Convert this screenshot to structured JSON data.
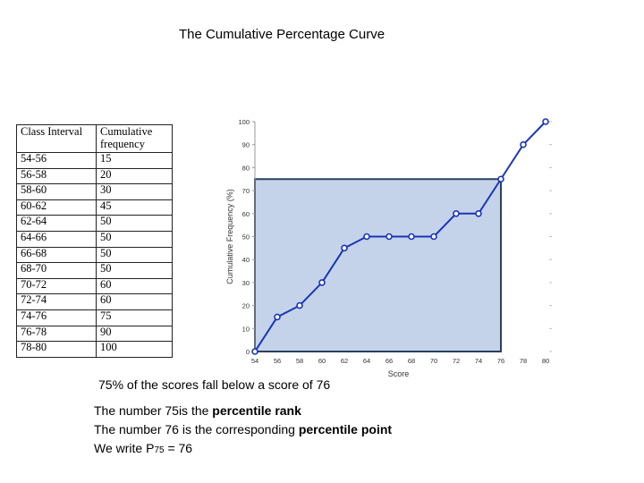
{
  "title": "The Cumulative Percentage Curve",
  "table": {
    "headers": [
      "Class Interval",
      "Cumulative frequency"
    ],
    "rows": [
      [
        "54-56",
        "15"
      ],
      [
        "56-58",
        "20"
      ],
      [
        "58-60",
        "30"
      ],
      [
        "60-62",
        "45"
      ],
      [
        "62-64",
        "50"
      ],
      [
        "64-66",
        "50"
      ],
      [
        "66-68",
        "50"
      ],
      [
        "68-70",
        "50"
      ],
      [
        "70-72",
        "60"
      ],
      [
        "72-74",
        "60"
      ],
      [
        "74-76",
        "75"
      ],
      [
        "76-78",
        "90"
      ],
      [
        "78-80",
        "100"
      ]
    ]
  },
  "chart_data": {
    "type": "line",
    "xlabel": "Score",
    "ylabel": "Cumulative Frequency (%)",
    "x": [
      54,
      56,
      58,
      60,
      62,
      64,
      66,
      68,
      70,
      72,
      74,
      76,
      78,
      80
    ],
    "series": [
      {
        "values": [
          0,
          15,
          20,
          30,
          45,
          50,
          50,
          50,
          50,
          60,
          60,
          75,
          90,
          100
        ]
      }
    ],
    "xlim": [
      54,
      80
    ],
    "ylim": [
      0,
      100
    ],
    "xticks": [
      "54",
      "56",
      "58",
      "60",
      "62",
      "64",
      "66",
      "68",
      "70",
      "72",
      "74",
      "76",
      "78",
      "80"
    ],
    "yticks": [
      "0",
      "10",
      "20",
      "30",
      "40",
      "50",
      "60",
      "70",
      "80",
      "90",
      "100"
    ],
    "highlight": {
      "x": 76,
      "y": 75,
      "fill": "#c5d3ea",
      "stroke": "#2c3f5f"
    },
    "line_color": "#1a35b5",
    "grid": false
  },
  "caption": "75% of the scores fall below a score of 76",
  "notes": {
    "line1_pre": "The number 75is the ",
    "line1_bold": "percentile rank",
    "line2_pre": "The number 76 is the corresponding ",
    "line2_bold": "percentile point",
    "line3_pre": "We write P",
    "line3_sub": "75",
    "line3_post": " = 76"
  }
}
